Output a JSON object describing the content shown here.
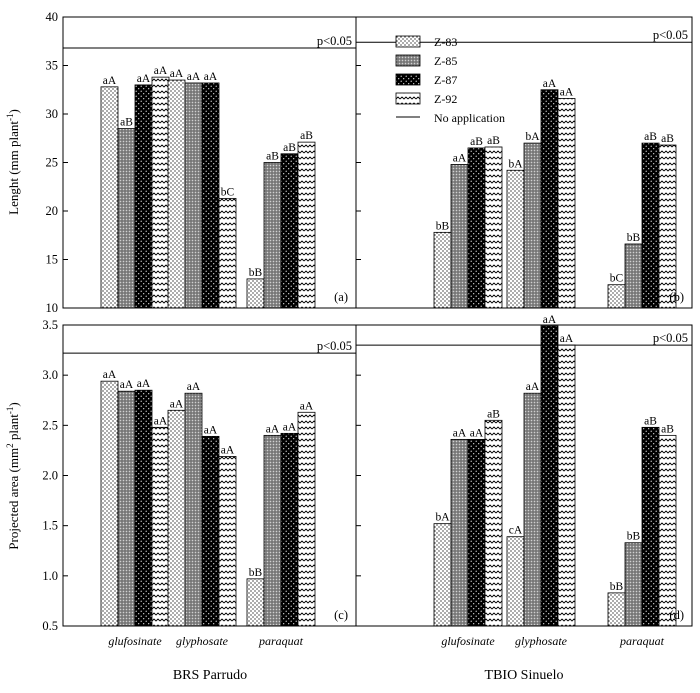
{
  "chart_data": {
    "type": "bar",
    "categories": [
      "glufosinate",
      "glyphosate",
      "paraquat"
    ],
    "series_names": [
      "Z-83",
      "Z-85",
      "Z-87",
      "Z-92"
    ],
    "series_colors": [
      "#ffffff",
      "#9a9a9a",
      "#111111",
      "#ffffff"
    ],
    "reference_label": "No application",
    "cultivars": [
      "BRS Parrudo",
      "TBIO Sinuelo"
    ],
    "ylabels": {
      "top": "Lenght (mm plant",
      "top_sup": "-1",
      "bottom": "Projected area (mm",
      "bottom_sup2": "2",
      "bottom_mid": " plant",
      "bottom_sup": "-1"
    },
    "top_axis": {
      "ylim": [
        10,
        40
      ],
      "ticks": [
        10,
        15,
        20,
        25,
        30,
        35,
        40
      ],
      "tick_labels": [
        "10",
        "15",
        "20",
        "25",
        "30",
        "35",
        "40"
      ]
    },
    "bottom_axis": {
      "ylim": [
        0.5,
        3.5
      ],
      "ticks": [
        0.5,
        1.0,
        1.5,
        2.0,
        2.5,
        3.0,
        3.5
      ],
      "tick_labels": [
        "0.5",
        "1.0",
        "1.5",
        "2.0",
        "2.5",
        "3.0",
        "3.5"
      ]
    },
    "panels": [
      {
        "panel": "(a)",
        "p_label": "p<0.05",
        "reference": 36.8,
        "values": [
          [
            32.8,
            28.5,
            33.0,
            33.8
          ],
          [
            33.5,
            33.2,
            33.2,
            21.3
          ],
          [
            13.0,
            25.0,
            25.9,
            27.1
          ]
        ],
        "labels": [
          [
            "aA",
            "aB",
            "aA",
            "aA"
          ],
          [
            "aA",
            "aA",
            "aA",
            "bC"
          ],
          [
            "bB",
            "aB",
            "aB",
            "aB"
          ]
        ]
      },
      {
        "panel": "(b)",
        "p_label": "p<0.05",
        "reference": 37.4,
        "values": [
          [
            17.8,
            24.8,
            26.5,
            26.6
          ],
          [
            24.2,
            27.0,
            32.5,
            31.6
          ],
          [
            12.4,
            16.6,
            27.0,
            26.8
          ]
        ],
        "labels": [
          [
            "bB",
            "aA",
            "aB",
            "aB"
          ],
          [
            "bA",
            "bA",
            "aA",
            "aA"
          ],
          [
            "bC",
            "bB",
            "aB",
            "aB"
          ]
        ]
      },
      {
        "panel": "(c)",
        "p_label": "p<0.05",
        "reference": 3.22,
        "values": [
          [
            2.94,
            2.84,
            2.85,
            2.48
          ],
          [
            2.65,
            2.82,
            2.39,
            2.19
          ],
          [
            0.97,
            2.4,
            2.42,
            2.63
          ]
        ],
        "labels": [
          [
            "aA",
            "aA",
            "aA",
            "aA"
          ],
          [
            "aA",
            "aA",
            "aA",
            "aA"
          ],
          [
            "bB",
            "aA",
            "aA",
            "aA"
          ]
        ]
      },
      {
        "panel": "(d)",
        "p_label": "p<0.05",
        "reference": 3.3,
        "values": [
          [
            1.52,
            2.36,
            2.36,
            2.55
          ],
          [
            1.39,
            2.82,
            3.49,
            3.3
          ],
          [
            0.83,
            1.33,
            2.48,
            2.4
          ]
        ],
        "labels": [
          [
            "bA",
            "aA",
            "aA",
            "aB"
          ],
          [
            "cA",
            "aA",
            "aA",
            "aA"
          ],
          [
            "bB",
            "bB",
            "aB",
            "aB"
          ]
        ]
      }
    ]
  }
}
